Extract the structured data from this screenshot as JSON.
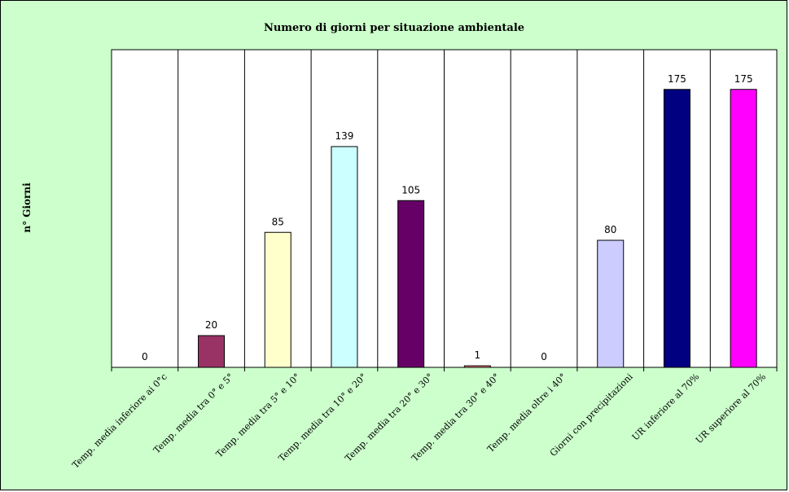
{
  "chart_data": {
    "type": "bar",
    "title": "Numero di giorni per situazione ambientale",
    "xlabel": "",
    "ylabel": "n° Giorni",
    "ylim": [
      0,
      200
    ],
    "grid": false,
    "legend": "none",
    "plot_background": "#ffffff",
    "chart_background": "#ccffcc",
    "categories": [
      "Temp. media inferiore ai 0°c",
      "Temp. media tra 0° e 5°",
      "Temp. media tra 5° e 10°",
      "Temp. media tra 10° e 20°",
      "Temp. media tra 20° e 30°",
      "Temp. media tra 30° e 40°",
      "Temp. media oltre i 40°",
      "Giorni con precipitazioni",
      "UR inferiore al 70%",
      "UR superiore al 70%"
    ],
    "values": [
      0,
      20,
      85,
      139,
      105,
      1,
      0,
      80,
      175,
      175
    ],
    "data_labels": [
      "0",
      "20",
      "85",
      "139",
      "105",
      "1",
      "0",
      "80",
      "175",
      "175"
    ],
    "colors": [
      "#993366",
      "#993366",
      "#ffffcc",
      "#ccffff",
      "#660066",
      "#ff8080",
      "#0066cc",
      "#ccccff",
      "#000080",
      "#ff00ff"
    ]
  }
}
